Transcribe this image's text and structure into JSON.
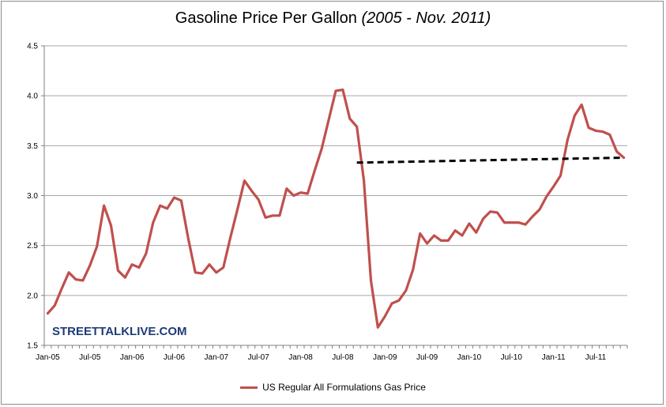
{
  "title": {
    "main": "Gasoline Price Per Gallon",
    "sub": "(2005 - Nov. 2011)"
  },
  "watermark": "STREETTALKLIVE.COM",
  "legend": {
    "label": "US Regular All Formulations Gas Price"
  },
  "colors": {
    "series": "#c0504d",
    "trendline": "#000000",
    "gridline": "#a6a6a6",
    "watermark": "#1f3b77"
  },
  "chart_data": {
    "type": "line",
    "title": "Gasoline Price Per Gallon (2005 - Nov. 2011)",
    "xlabel": "",
    "ylabel": "",
    "ylim": [
      1.5,
      4.5
    ],
    "yticks": [
      "1.5",
      "2.0",
      "2.5",
      "3.0",
      "3.5",
      "4.0",
      "4.5"
    ],
    "xticks": [
      "Jan-05",
      "Jul-05",
      "Jan-06",
      "Jul-06",
      "Jan-07",
      "Jul-07",
      "Jan-08",
      "Jul-08",
      "Jan-09",
      "Jul-09",
      "Jan-10",
      "Jul-10",
      "Jan-11",
      "Jul-11"
    ],
    "grid": true,
    "legend_position": "bottom",
    "series": [
      {
        "name": "US Regular All Formulations Gas Price",
        "x_start": "Jan-05",
        "frequency": "monthly",
        "values": [
          1.82,
          1.9,
          2.07,
          2.23,
          2.16,
          2.15,
          2.3,
          2.49,
          2.9,
          2.7,
          2.25,
          2.18,
          2.31,
          2.28,
          2.42,
          2.73,
          2.9,
          2.87,
          2.98,
          2.95,
          2.57,
          2.23,
          2.22,
          2.31,
          2.23,
          2.28,
          2.58,
          2.86,
          3.15,
          3.05,
          2.96,
          2.78,
          2.8,
          2.8,
          3.07,
          3.0,
          3.03,
          3.02,
          3.25,
          3.47,
          3.76,
          4.05,
          4.06,
          3.77,
          3.69,
          3.15,
          2.15,
          1.68,
          1.79,
          1.92,
          1.95,
          2.05,
          2.26,
          2.62,
          2.52,
          2.6,
          2.55,
          2.55,
          2.65,
          2.6,
          2.72,
          2.63,
          2.77,
          2.84,
          2.83,
          2.73,
          2.73,
          2.73,
          2.71,
          2.79,
          2.86,
          2.99,
          3.09,
          3.2,
          3.56,
          3.8,
          3.91,
          3.68,
          3.65,
          3.64,
          3.61,
          3.44,
          3.38
        ]
      },
      {
        "name": "trendline",
        "style": "dashed",
        "points": [
          {
            "x": "Sep-08",
            "y": 3.33
          },
          {
            "x": "Nov-11",
            "y": 3.38
          }
        ]
      }
    ]
  }
}
